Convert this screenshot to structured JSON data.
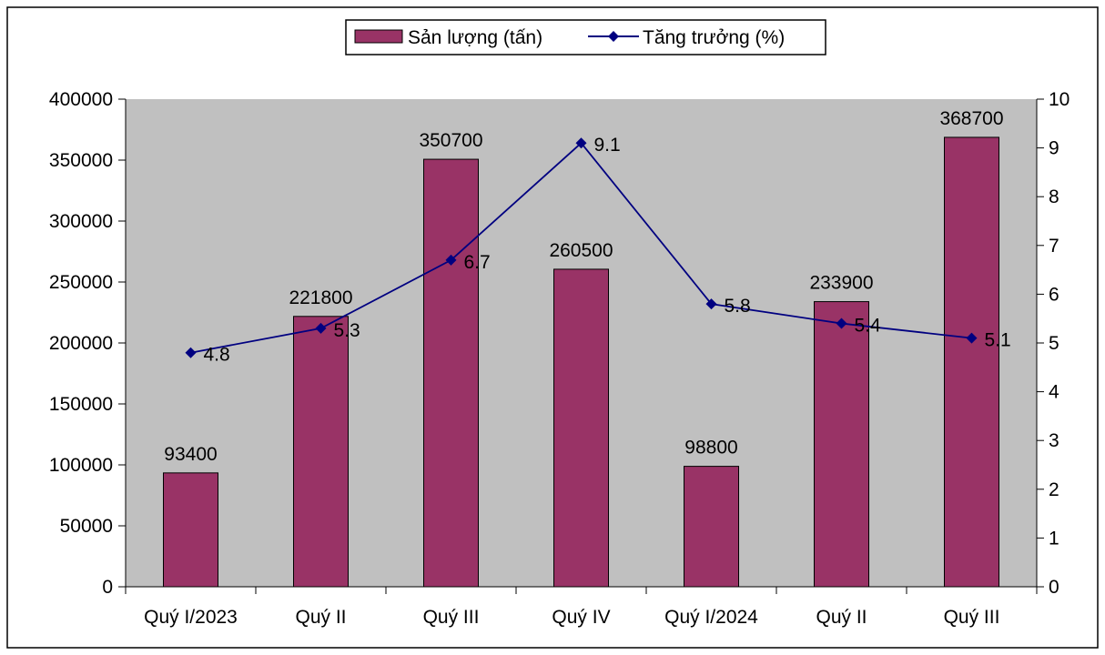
{
  "chart_data": {
    "type": "bar",
    "categories": [
      "Quý I/2023",
      "Quý II",
      "Quý III",
      "Quý IV",
      "Quý I/2024",
      "Quý II",
      "Quý III"
    ],
    "series": [
      {
        "name": "Sản lượng (tấn)",
        "type": "bar",
        "axis": "left",
        "values": [
          93400,
          221800,
          350700,
          260500,
          98800,
          233900,
          368700
        ],
        "data_labels": [
          "93400",
          "221800",
          "350700",
          "260500",
          "98800",
          "233900",
          "368700"
        ]
      },
      {
        "name": "Tăng trưởng (%)",
        "type": "line",
        "axis": "right",
        "values": [
          4.8,
          5.3,
          6.7,
          9.1,
          5.8,
          5.4,
          5.1
        ],
        "data_labels": [
          "4.8",
          "5.3",
          "6.7",
          "9.1",
          "5.8",
          "5.4",
          "5.1"
        ]
      }
    ],
    "y_left": {
      "min": 0,
      "max": 400000,
      "ticks": [
        "0",
        "50000",
        "100000",
        "150000",
        "200000",
        "250000",
        "300000",
        "350000",
        "400000"
      ]
    },
    "y_right": {
      "min": 0,
      "max": 10,
      "ticks": [
        "0",
        "1",
        "2",
        "3",
        "4",
        "5",
        "6",
        "7",
        "8",
        "9",
        "10"
      ]
    },
    "grid": false,
    "legend_position": "top-center",
    "colors": {
      "bar_fill": "#993366",
      "line": "#000080",
      "plot_bg": "#c0c0c0",
      "frame": "#000000"
    }
  }
}
